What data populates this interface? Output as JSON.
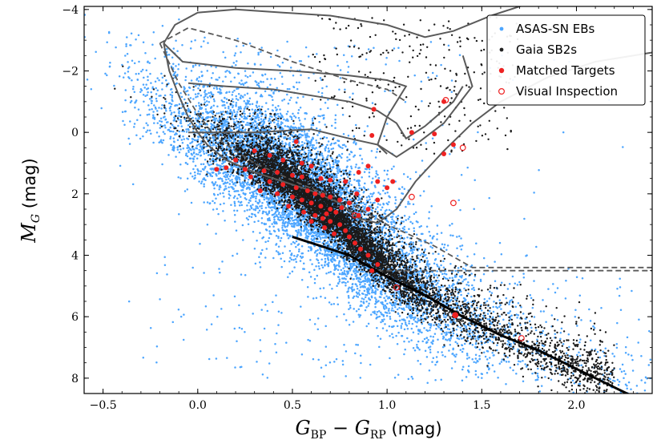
{
  "chart_data": {
    "type": "scatter",
    "title": "",
    "xlabel": "G_BP − G_RP (mag)",
    "ylabel": "M_G (mag)",
    "xlabel_parts": {
      "main": "G",
      "sub1": "BP",
      "minus": " − ",
      "main2": "G",
      "sub2": "RP",
      "unit": " (mag)"
    },
    "ylabel_parts": {
      "main": "M",
      "sub": "G",
      "unit": " (mag)"
    },
    "xlim": [
      -0.6,
      2.4
    ],
    "ylim": [
      8.5,
      -4.1
    ],
    "y_inverted": true,
    "x_ticks": [
      -0.5,
      0.0,
      0.5,
      1.0,
      1.5,
      2.0
    ],
    "x_tick_labels": [
      "−0.5",
      "0.0",
      "0.5",
      "1.0",
      "1.5",
      "2.0"
    ],
    "y_ticks": [
      -4,
      -2,
      0,
      2,
      4,
      6,
      8
    ],
    "y_tick_labels": [
      "−4",
      "−2",
      "0",
      "2",
      "4",
      "6",
      "8"
    ],
    "legend_position": "top-right",
    "legend": [
      {
        "label": "ASAS-SN EBs",
        "marker": "filled-dot",
        "color": "#4da6ff"
      },
      {
        "label": "Gaia SB2s",
        "marker": "filled-dot",
        "color": "#222222"
      },
      {
        "label": "Matched Targets",
        "marker": "filled-dot",
        "color": "#ee2222"
      },
      {
        "label": "Visual Inspection",
        "marker": "open-circle",
        "color": "#ee2222"
      }
    ],
    "colors": {
      "asassn": "#4da6ff",
      "gaia": "#1a1a1a",
      "matched": "#ee2222",
      "visual": "#ee2222",
      "isochrone": "#5a5a5a"
    },
    "main_sequence_ridge": [
      [
        -0.3,
        -1.0
      ],
      [
        0.0,
        0.3
      ],
      [
        0.3,
        1.2
      ],
      [
        0.5,
        2.0
      ],
      [
        0.7,
        3.0
      ],
      [
        0.9,
        4.2
      ],
      [
        1.1,
        5.2
      ],
      [
        1.4,
        6.3
      ],
      [
        1.7,
        7.2
      ],
      [
        2.0,
        8.0
      ],
      [
        2.3,
        8.6
      ]
    ],
    "series": [
      {
        "name": "ASAS-SN EBs",
        "role": "dense cloud around main sequence, spread ±1.2 mag",
        "approx_count": 9000
      },
      {
        "name": "Gaia SB2s",
        "role": "tight main sequence band + binary sequence",
        "approx_count": 7000
      },
      {
        "name": "Matched Targets",
        "points": [
          [
            0.93,
            -0.75
          ],
          [
            0.92,
            0.1
          ],
          [
            1.3,
            -1.0
          ],
          [
            1.13,
            0.0
          ],
          [
            1.25,
            0.05
          ],
          [
            1.35,
            0.4
          ],
          [
            1.3,
            0.7
          ],
          [
            0.52,
            0.3
          ],
          [
            0.3,
            0.6
          ],
          [
            0.38,
            0.75
          ],
          [
            0.45,
            0.9
          ],
          [
            0.2,
            0.9
          ],
          [
            0.55,
            1.0
          ],
          [
            0.6,
            1.1
          ],
          [
            0.15,
            1.15
          ],
          [
            0.25,
            1.2
          ],
          [
            0.35,
            1.25
          ],
          [
            0.42,
            1.3
          ],
          [
            0.5,
            1.4
          ],
          [
            0.55,
            1.45
          ],
          [
            0.65,
            1.5
          ],
          [
            0.7,
            1.55
          ],
          [
            0.78,
            1.6
          ],
          [
            0.85,
            1.3
          ],
          [
            0.9,
            1.1
          ],
          [
            0.95,
            1.6
          ],
          [
            1.03,
            1.6
          ],
          [
            0.45,
            1.7
          ],
          [
            0.52,
            1.8
          ],
          [
            0.58,
            1.9
          ],
          [
            0.62,
            2.0
          ],
          [
            0.66,
            2.05
          ],
          [
            0.7,
            2.1
          ],
          [
            0.75,
            2.2
          ],
          [
            0.8,
            2.3
          ],
          [
            0.5,
            2.1
          ],
          [
            0.55,
            2.2
          ],
          [
            0.6,
            2.3
          ],
          [
            0.65,
            2.4
          ],
          [
            0.7,
            2.5
          ],
          [
            0.73,
            2.6
          ],
          [
            0.62,
            2.7
          ],
          [
            0.66,
            2.8
          ],
          [
            0.7,
            2.9
          ],
          [
            0.75,
            3.0
          ],
          [
            0.78,
            3.2
          ],
          [
            0.8,
            3.4
          ],
          [
            0.72,
            3.3
          ],
          [
            0.83,
            3.6
          ],
          [
            0.86,
            3.8
          ],
          [
            0.9,
            4.0
          ],
          [
            0.95,
            4.3
          ],
          [
            0.92,
            4.5
          ],
          [
            0.48,
            2.4
          ],
          [
            0.42,
            2.0
          ],
          [
            0.38,
            1.6
          ],
          [
            0.56,
            2.6
          ],
          [
            0.6,
            2.9
          ],
          [
            0.67,
            3.1
          ],
          [
            0.85,
            2.7
          ],
          [
            0.9,
            2.5
          ],
          [
            0.95,
            2.2
          ],
          [
            1.0,
            1.8
          ],
          [
            0.1,
            1.2
          ],
          [
            0.28,
            1.45
          ],
          [
            0.33,
            1.9
          ],
          [
            0.76,
            2.45
          ],
          [
            0.84,
            2.0
          ],
          [
            1.36,
            5.95
          ],
          [
            0.68,
            2.65
          ]
        ]
      },
      {
        "name": "Visual Inspection",
        "points": [
          [
            1.31,
            -1.05
          ],
          [
            1.4,
            0.5
          ],
          [
            1.13,
            2.1
          ],
          [
            1.35,
            2.3
          ],
          [
            0.83,
            2.7
          ],
          [
            1.05,
            5.05
          ],
          [
            1.36,
            5.95
          ],
          [
            1.71,
            6.7
          ]
        ]
      }
    ],
    "isochrones": {
      "solid": [
        [
          [
            -0.18,
            -2.9
          ],
          [
            -0.12,
            -3.5
          ],
          [
            0.0,
            -3.9
          ],
          [
            0.2,
            -4.0
          ],
          [
            0.45,
            -3.9
          ],
          [
            0.7,
            -3.8
          ],
          [
            1.0,
            -3.5
          ],
          [
            1.2,
            -3.1
          ],
          [
            1.35,
            -3.3
          ],
          [
            1.55,
            -3.8
          ],
          [
            1.75,
            -4.2
          ]
        ],
        [
          [
            -0.18,
            -2.9
          ],
          [
            -0.15,
            -2.0
          ],
          [
            -0.1,
            -1.2
          ],
          [
            -0.05,
            -0.5
          ],
          [
            0.0,
            0.0
          ],
          [
            0.05,
            0.4
          ],
          [
            0.15,
            0.9
          ],
          [
            0.3,
            1.3
          ],
          [
            0.45,
            1.6
          ],
          [
            0.6,
            1.9
          ],
          [
            0.75,
            2.3
          ],
          [
            0.85,
            2.8
          ],
          [
            0.95,
            2.95
          ],
          [
            1.05,
            2.5
          ],
          [
            1.15,
            1.6
          ],
          [
            1.3,
            0.6
          ],
          [
            1.45,
            -0.3
          ],
          [
            1.6,
            -1.0
          ],
          [
            1.85,
            -1.8
          ],
          [
            2.1,
            -2.3
          ],
          [
            2.4,
            -2.6
          ]
        ],
        [
          [
            -0.18,
            -2.9
          ],
          [
            -0.08,
            -2.3
          ],
          [
            0.2,
            -2.1
          ],
          [
            0.5,
            -2.0
          ],
          [
            0.8,
            -1.85
          ],
          [
            1.0,
            -1.7
          ],
          [
            1.1,
            -1.5
          ],
          [
            1.0,
            -0.5
          ],
          [
            0.95,
            0.4
          ],
          [
            1.05,
            0.8
          ],
          [
            1.15,
            0.4
          ],
          [
            1.3,
            -0.3
          ],
          [
            1.45,
            -1.5
          ],
          [
            1.4,
            -2.5
          ]
        ],
        [
          [
            -0.05,
            -1.6
          ],
          [
            0.15,
            -1.5
          ],
          [
            0.4,
            -1.4
          ],
          [
            0.6,
            -1.2
          ],
          [
            0.8,
            -1.0
          ],
          [
            0.95,
            -0.7
          ],
          [
            1.05,
            -0.3
          ],
          [
            1.1,
            0.2
          ],
          [
            1.2,
            -0.2
          ],
          [
            1.35,
            -1.0
          ],
          [
            1.4,
            -1.5
          ]
        ],
        [
          [
            -0.05,
            0.0
          ],
          [
            0.3,
            0.0
          ],
          [
            0.6,
            -0.1
          ],
          [
            0.8,
            0.2
          ],
          [
            0.95,
            0.4
          ],
          [
            1.0,
            0.7
          ]
        ]
      ],
      "dashed": [
        [
          [
            -0.2,
            -2.9
          ],
          [
            -0.05,
            -3.4
          ],
          [
            0.2,
            -3.0
          ],
          [
            0.5,
            -2.3
          ],
          [
            0.8,
            -1.7
          ],
          [
            1.0,
            -1.4
          ],
          [
            1.1,
            -1.0
          ]
        ],
        [
          [
            -0.2,
            -2.9
          ],
          [
            -0.1,
            -1.6
          ],
          [
            0.0,
            -0.6
          ],
          [
            0.1,
            0.2
          ],
          [
            0.3,
            1.0
          ],
          [
            0.55,
            1.7
          ],
          [
            0.8,
            2.3
          ],
          [
            1.0,
            3.0
          ],
          [
            1.25,
            3.7
          ],
          [
            1.45,
            4.4
          ],
          [
            2.4,
            4.4
          ]
        ],
        [
          [
            0.95,
            4.5
          ],
          [
            2.4,
            4.5
          ]
        ]
      ],
      "ridge_black": [
        [
          0.5,
          3.4
        ],
        [
          0.8,
          4.0
        ],
        [
          1.0,
          4.7
        ],
        [
          1.2,
          5.3
        ],
        [
          1.4,
          6.0
        ],
        [
          1.6,
          6.6
        ],
        [
          1.8,
          7.1
        ],
        [
          2.0,
          7.7
        ],
        [
          2.2,
          8.3
        ],
        [
          2.3,
          8.6
        ]
      ]
    }
  }
}
